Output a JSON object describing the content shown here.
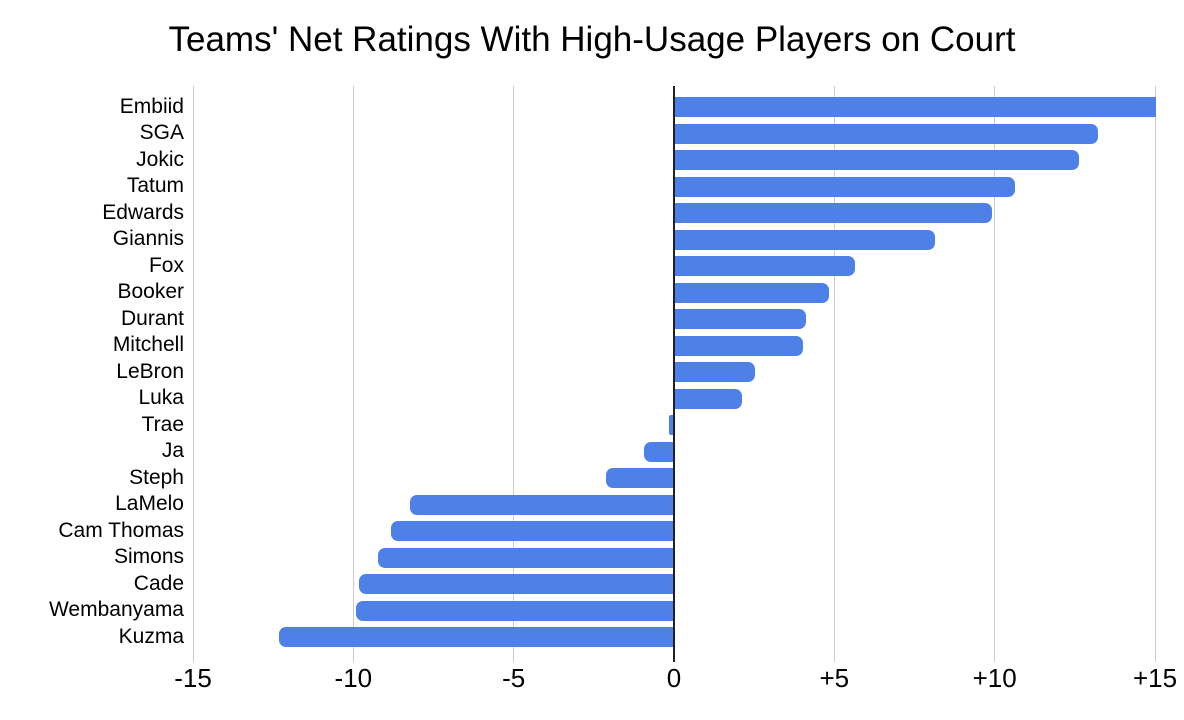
{
  "title": "Teams' Net Ratings With High-Usage Players on Court",
  "chart_data": {
    "type": "bar",
    "orientation": "horizontal",
    "title": "Teams' Net Ratings With High-Usage Players on Court",
    "categories": [
      "Embiid",
      "SGA",
      "Jokic",
      "Tatum",
      "Edwards",
      "Giannis",
      "Fox",
      "Booker",
      "Durant",
      "Mitchell",
      "LeBron",
      "Luka",
      "Trae",
      "Ja",
      "Steph",
      "LaMelo",
      "Cam Thomas",
      "Simons",
      "Cade",
      "Wembanyama",
      "Kuzma"
    ],
    "values": [
      15.0,
      13.2,
      12.6,
      10.6,
      9.9,
      8.1,
      5.6,
      4.8,
      4.1,
      4.0,
      2.5,
      2.1,
      -0.1,
      -0.9,
      -2.1,
      -8.2,
      -8.8,
      -9.2,
      -9.8,
      -9.9,
      -12.3
    ],
    "xlabel": "",
    "ylabel": "",
    "xlim": [
      -15,
      15
    ],
    "x_ticks": [
      {
        "value": -15,
        "label": "-15"
      },
      {
        "value": -10,
        "label": "-10"
      },
      {
        "value": -5,
        "label": "-5"
      },
      {
        "value": 0,
        "label": "0"
      },
      {
        "value": 5,
        "label": "+5"
      },
      {
        "value": 10,
        "label": "+10"
      },
      {
        "value": 15,
        "label": "+15"
      }
    ],
    "grid": true,
    "legend": "none",
    "colors": {
      "bar": "#4e81e8",
      "zero_axis": "#212121",
      "gridline": "#cccccc",
      "text": "#000000",
      "background": "#ffffff"
    }
  }
}
